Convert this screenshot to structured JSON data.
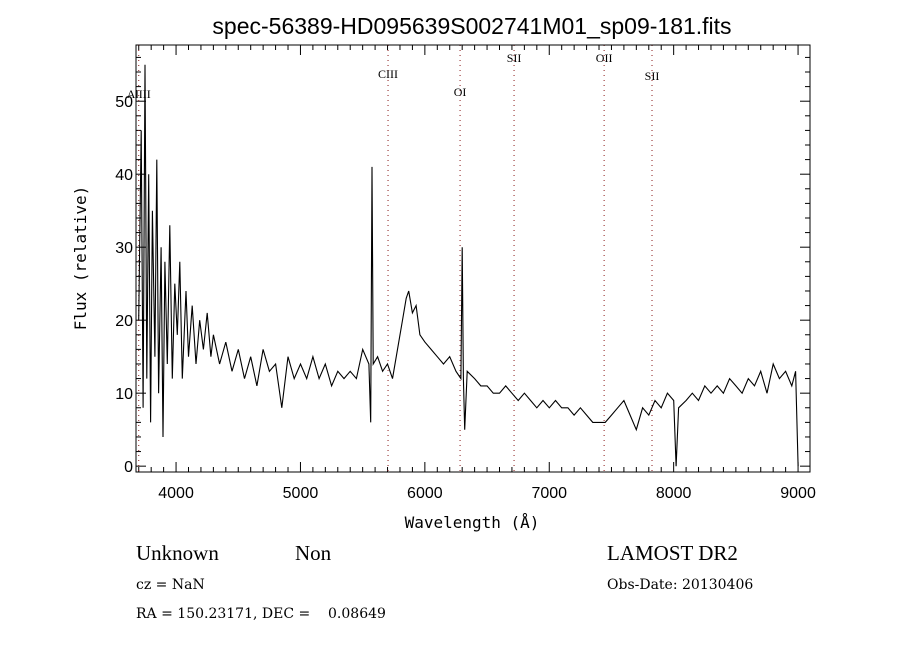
{
  "chart_data": {
    "type": "line",
    "title": "spec-56389-HD095639S002741M01_sp09-181.fits",
    "xlabel": "Wavelength (Å)",
    "ylabel": "Flux (relative)",
    "xlim": [
      3678,
      9096
    ],
    "ylim": [
      -0.8,
      57.7
    ],
    "xticks": [
      4000,
      5000,
      6000,
      7000,
      8000,
      9000
    ],
    "xtick_labels": [
      "4000",
      "5000",
      "6000",
      "7000",
      "8000",
      "9000"
    ],
    "yticks": [
      0,
      10,
      20,
      30,
      40,
      50
    ],
    "ytick_labels": [
      "0",
      "10",
      "20",
      "30",
      "40",
      "50"
    ],
    "grid": false,
    "line_color": "#000000",
    "marker_line_color": "#8b1a1a",
    "lines": [
      {
        "label": "AlIII",
        "x": 3700
      },
      {
        "label": "CIII",
        "x": 5704
      },
      {
        "label": "OI",
        "x": 6283
      },
      {
        "label": "SII",
        "x": 6717
      },
      {
        "label": "OII",
        "x": 7441
      },
      {
        "label": "SII",
        "x": 7826
      }
    ],
    "series": [
      {
        "name": "flux",
        "points": [
          [
            3700,
            20
          ],
          [
            3720,
            46
          ],
          [
            3735,
            8
          ],
          [
            3750,
            55
          ],
          [
            3765,
            12
          ],
          [
            3780,
            40
          ],
          [
            3795,
            6
          ],
          [
            3810,
            35
          ],
          [
            3830,
            15
          ],
          [
            3845,
            42
          ],
          [
            3860,
            10
          ],
          [
            3880,
            30
          ],
          [
            3895,
            4
          ],
          [
            3910,
            28
          ],
          [
            3930,
            14
          ],
          [
            3950,
            33
          ],
          [
            3970,
            12
          ],
          [
            3990,
            25
          ],
          [
            4010,
            18
          ],
          [
            4030,
            28
          ],
          [
            4050,
            12
          ],
          [
            4080,
            24
          ],
          [
            4100,
            15
          ],
          [
            4130,
            22
          ],
          [
            4160,
            14
          ],
          [
            4190,
            20
          ],
          [
            4220,
            16
          ],
          [
            4250,
            21
          ],
          [
            4280,
            15
          ],
          [
            4300,
            18
          ],
          [
            4350,
            14
          ],
          [
            4400,
            17
          ],
          [
            4450,
            13
          ],
          [
            4500,
            16
          ],
          [
            4550,
            12
          ],
          [
            4600,
            15
          ],
          [
            4650,
            11
          ],
          [
            4700,
            16
          ],
          [
            4750,
            13
          ],
          [
            4800,
            14
          ],
          [
            4850,
            8
          ],
          [
            4900,
            15
          ],
          [
            4950,
            12
          ],
          [
            5000,
            14
          ],
          [
            5050,
            12
          ],
          [
            5100,
            15
          ],
          [
            5150,
            12
          ],
          [
            5200,
            14
          ],
          [
            5250,
            11
          ],
          [
            5300,
            13
          ],
          [
            5350,
            12
          ],
          [
            5400,
            13
          ],
          [
            5450,
            12
          ],
          [
            5500,
            16
          ],
          [
            5550,
            14
          ],
          [
            5565,
            6
          ],
          [
            5575,
            41
          ],
          [
            5585,
            14
          ],
          [
            5620,
            15
          ],
          [
            5660,
            13
          ],
          [
            5700,
            14
          ],
          [
            5740,
            12
          ],
          [
            5780,
            16
          ],
          [
            5820,
            20
          ],
          [
            5850,
            23
          ],
          [
            5870,
            24
          ],
          [
            5900,
            21
          ],
          [
            5930,
            22
          ],
          [
            5960,
            18
          ],
          [
            6000,
            17
          ],
          [
            6050,
            16
          ],
          [
            6100,
            15
          ],
          [
            6150,
            14
          ],
          [
            6200,
            15
          ],
          [
            6250,
            13
          ],
          [
            6290,
            12
          ],
          [
            6300,
            30
          ],
          [
            6310,
            12
          ],
          [
            6320,
            5
          ],
          [
            6340,
            13
          ],
          [
            6400,
            12
          ],
          [
            6450,
            11
          ],
          [
            6500,
            11
          ],
          [
            6550,
            10
          ],
          [
            6600,
            10
          ],
          [
            6650,
            11
          ],
          [
            6700,
            10
          ],
          [
            6750,
            9
          ],
          [
            6800,
            10
          ],
          [
            6850,
            9
          ],
          [
            6900,
            8
          ],
          [
            6950,
            9
          ],
          [
            7000,
            8
          ],
          [
            7050,
            9
          ],
          [
            7100,
            8
          ],
          [
            7150,
            8
          ],
          [
            7200,
            7
          ],
          [
            7250,
            8
          ],
          [
            7300,
            7
          ],
          [
            7350,
            6
          ],
          [
            7400,
            6
          ],
          [
            7450,
            6
          ],
          [
            7500,
            7
          ],
          [
            7550,
            8
          ],
          [
            7600,
            9
          ],
          [
            7650,
            7
          ],
          [
            7700,
            5
          ],
          [
            7750,
            8
          ],
          [
            7800,
            7
          ],
          [
            7850,
            9
          ],
          [
            7900,
            8
          ],
          [
            7950,
            10
          ],
          [
            8000,
            9
          ],
          [
            8020,
            0
          ],
          [
            8040,
            8
          ],
          [
            8100,
            9
          ],
          [
            8150,
            10
          ],
          [
            8200,
            9
          ],
          [
            8250,
            11
          ],
          [
            8300,
            10
          ],
          [
            8350,
            11
          ],
          [
            8400,
            10
          ],
          [
            8450,
            12
          ],
          [
            8500,
            11
          ],
          [
            8550,
            10
          ],
          [
            8600,
            12
          ],
          [
            8650,
            11
          ],
          [
            8700,
            13
          ],
          [
            8750,
            10
          ],
          [
            8800,
            14
          ],
          [
            8850,
            12
          ],
          [
            8900,
            13
          ],
          [
            8950,
            11
          ],
          [
            8980,
            13
          ],
          [
            9000,
            0
          ]
        ]
      }
    ]
  },
  "info": {
    "class": "Unknown",
    "subclass": "Non",
    "survey": "LAMOST DR2",
    "cz": "cz = NaN",
    "obs_date": "Obs-Date: 20130406",
    "radec": "RA = 150.23171, DEC =    0.08649"
  }
}
